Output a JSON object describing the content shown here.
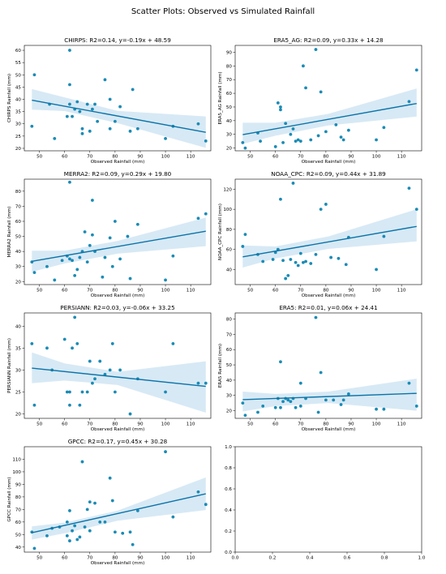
{
  "figure": {
    "title": "Scatter Plots: Observed vs Simulated Rainfall"
  },
  "colors": {
    "point": "#1a8bb5",
    "line": "#0b74a8",
    "band": "#a6cfe8",
    "axis": "#000000"
  },
  "chart_data": [
    {
      "type": "scatter",
      "title": "CHIRPS: R2=0.14, y=-0.19x + 48.59",
      "xlabel": "Observed Rainfall (mm)",
      "ylabel": "CHIRPS Rainfall (mm)",
      "xlim": [
        44,
        118
      ],
      "ylim": [
        19,
        62
      ],
      "xticks": [
        50,
        60,
        70,
        80,
        90,
        100,
        110
      ],
      "yticks": [
        20,
        25,
        30,
        35,
        40,
        45,
        50,
        55,
        60
      ],
      "regression": {
        "slope": -0.19,
        "intercept": 48.59
      },
      "band": {
        "x": [
          47,
          60,
          81,
          116
        ],
        "lower": [
          35.8,
          35.2,
          30.3,
          20.2
        ],
        "upper": [
          44.2,
          40.8,
          35.3,
          33.0
        ]
      },
      "points": [
        [
          47,
          29
        ],
        [
          48,
          50
        ],
        [
          54,
          38
        ],
        [
          56,
          24
        ],
        [
          61,
          33
        ],
        [
          62,
          60
        ],
        [
          62,
          46
        ],
        [
          62,
          38
        ],
        [
          63,
          33
        ],
        [
          64,
          36
        ],
        [
          65,
          39
        ],
        [
          66,
          35
        ],
        [
          67,
          26
        ],
        [
          67,
          28
        ],
        [
          69,
          38
        ],
        [
          70,
          27
        ],
        [
          71,
          36
        ],
        [
          72,
          38
        ],
        [
          73,
          31
        ],
        [
          76,
          48
        ],
        [
          78,
          40
        ],
        [
          78,
          28
        ],
        [
          80,
          31
        ],
        [
          82,
          37
        ],
        [
          86,
          27
        ],
        [
          87,
          44
        ],
        [
          89,
          28
        ],
        [
          100,
          24
        ],
        [
          103,
          29
        ],
        [
          113,
          30
        ],
        [
          116,
          23
        ]
      ]
    },
    {
      "type": "scatter",
      "title": "ERA5_AG: R2=0.09, y=0.33x + 14.28",
      "xlabel": "Observed Rainfall (mm)",
      "ylabel": "ERA5_AG Rainfall (mm)",
      "xlim": [
        44,
        118
      ],
      "ylim": [
        18,
        95
      ],
      "xticks": [
        50,
        60,
        70,
        80,
        90,
        100,
        110
      ],
      "yticks": [
        20,
        30,
        40,
        50,
        60,
        70,
        80,
        90
      ],
      "regression": {
        "slope": 0.33,
        "intercept": 14.28
      },
      "band": {
        "x": [
          47,
          60,
          81,
          116
        ],
        "lower": [
          23.0,
          29.0,
          36.5,
          43.0
        ],
        "upper": [
          38.5,
          38.5,
          45.0,
          63.5
        ]
      },
      "points": [
        [
          47,
          24
        ],
        [
          48,
          20
        ],
        [
          53,
          31
        ],
        [
          54,
          25
        ],
        [
          60,
          21
        ],
        [
          61,
          53
        ],
        [
          62,
          50
        ],
        [
          62,
          48
        ],
        [
          63,
          24
        ],
        [
          64,
          38
        ],
        [
          66,
          30
        ],
        [
          67,
          34
        ],
        [
          68,
          25
        ],
        [
          69,
          26
        ],
        [
          70,
          25
        ],
        [
          71,
          80
        ],
        [
          72,
          64
        ],
        [
          74,
          26
        ],
        [
          76,
          92
        ],
        [
          77,
          29
        ],
        [
          78,
          61
        ],
        [
          80,
          32
        ],
        [
          84,
          37
        ],
        [
          86,
          28
        ],
        [
          87,
          26
        ],
        [
          89,
          33
        ],
        [
          100,
          26
        ],
        [
          103,
          35
        ],
        [
          113,
          54
        ],
        [
          116,
          77
        ]
      ]
    },
    {
      "type": "scatter",
      "title": "MERRA2: R2=0.09, y=0.29x + 19.80",
      "xlabel": "Observed Rainfall (mm)",
      "ylabel": "MERRA2 Rainfall (mm)",
      "xlim": [
        44,
        118
      ],
      "ylim": [
        18,
        88
      ],
      "xticks": [
        50,
        60,
        70,
        80,
        90,
        100,
        110
      ],
      "yticks": [
        20,
        30,
        40,
        50,
        60,
        70,
        80
      ],
      "regression": {
        "slope": 0.29,
        "intercept": 19.8
      },
      "band": {
        "x": [
          47,
          60,
          81,
          116
        ],
        "lower": [
          26.5,
          32.0,
          38.5,
          43.5
        ],
        "upper": [
          40.5,
          40.5,
          47.0,
          62.5
        ]
      },
      "points": [
        [
          47,
          33
        ],
        [
          48,
          26
        ],
        [
          53,
          30
        ],
        [
          56,
          21
        ],
        [
          59,
          34
        ],
        [
          61,
          37
        ],
        [
          62,
          86
        ],
        [
          62,
          35
        ],
        [
          63,
          34
        ],
        [
          64,
          24
        ],
        [
          65,
          28
        ],
        [
          66,
          36
        ],
        [
          67,
          40
        ],
        [
          68,
          53
        ],
        [
          69,
          33
        ],
        [
          70,
          44
        ],
        [
          71,
          74
        ],
        [
          71,
          51
        ],
        [
          72,
          40
        ],
        [
          75,
          23
        ],
        [
          76,
          36
        ],
        [
          78,
          49
        ],
        [
          79,
          30
        ],
        [
          80,
          60
        ],
        [
          82,
          35
        ],
        [
          85,
          50
        ],
        [
          86,
          22
        ],
        [
          89,
          58
        ],
        [
          100,
          21
        ],
        [
          103,
          37
        ],
        [
          113,
          62
        ],
        [
          116,
          65
        ]
      ]
    },
    {
      "type": "scatter",
      "title": "NOAA_CPC: R2=0.09, y=0.44x + 31.89",
      "xlabel": "Observed Rainfall (mm)",
      "ylabel": "NOAA_CPC Rainfall (mm)",
      "xlim": [
        44,
        118
      ],
      "ylim": [
        25,
        130
      ],
      "xticks": [
        50,
        60,
        70,
        80,
        90,
        100,
        110
      ],
      "yticks": [
        40,
        60,
        80,
        100,
        120
      ],
      "regression": {
        "slope": 0.44,
        "intercept": 31.89
      },
      "band": {
        "x": [
          47,
          60,
          81,
          116
        ],
        "lower": [
          42.0,
          51.0,
          60.5,
          68.0
        ],
        "upper": [
          64.0,
          63.0,
          73.0,
          100.0
        ]
      },
      "points": [
        [
          47,
          63
        ],
        [
          48,
          75
        ],
        [
          53,
          55
        ],
        [
          55,
          48
        ],
        [
          59,
          50
        ],
        [
          60,
          57
        ],
        [
          61,
          60
        ],
        [
          62,
          110
        ],
        [
          63,
          49
        ],
        [
          64,
          31
        ],
        [
          65,
          34
        ],
        [
          66,
          50
        ],
        [
          67,
          126
        ],
        [
          68,
          47
        ],
        [
          69,
          44
        ],
        [
          70,
          56
        ],
        [
          71,
          47
        ],
        [
          72,
          48
        ],
        [
          74,
          46
        ],
        [
          76,
          55
        ],
        [
          78,
          100
        ],
        [
          80,
          105
        ],
        [
          82,
          52
        ],
        [
          85,
          51
        ],
        [
          88,
          45
        ],
        [
          89,
          72
        ],
        [
          100,
          40
        ],
        [
          103,
          73
        ],
        [
          113,
          121
        ],
        [
          116,
          100
        ]
      ]
    },
    {
      "type": "scatter",
      "title": "PERSIANN: R2=0.03, y=-0.06x + 33.25",
      "xlabel": "Observed Rainfall (mm)",
      "ylabel": "PERSIANN Rainfall (mm)",
      "xlim": [
        44,
        118
      ],
      "ylim": [
        19,
        43
      ],
      "xticks": [
        50,
        60,
        70,
        80,
        90,
        100,
        110
      ],
      "yticks": [
        20,
        25,
        30,
        35,
        40
      ],
      "regression": {
        "slope": -0.06,
        "intercept": 33.25
      },
      "band": {
        "x": [
          47,
          60,
          81,
          116
        ],
        "lower": [
          27.0,
          27.6,
          26.6,
          20.3
        ],
        "upper": [
          34.0,
          31.5,
          29.6,
          32.0
        ]
      },
      "points": [
        [
          47,
          36
        ],
        [
          48,
          22
        ],
        [
          53,
          35
        ],
        [
          55,
          30
        ],
        [
          60,
          37
        ],
        [
          61,
          25
        ],
        [
          62,
          22
        ],
        [
          62,
          25
        ],
        [
          63,
          35
        ],
        [
          64,
          42
        ],
        [
          65,
          36
        ],
        [
          66,
          22
        ],
        [
          67,
          25
        ],
        [
          69,
          25
        ],
        [
          70,
          32
        ],
        [
          71,
          27
        ],
        [
          72,
          28
        ],
        [
          74,
          32
        ],
        [
          76,
          29
        ],
        [
          78,
          30
        ],
        [
          79,
          36
        ],
        [
          80,
          25
        ],
        [
          82,
          30
        ],
        [
          86,
          20
        ],
        [
          89,
          28
        ],
        [
          100,
          25
        ],
        [
          103,
          36
        ],
        [
          113,
          27
        ],
        [
          116,
          27
        ]
      ]
    },
    {
      "type": "scatter",
      "title": "ERA5: R2=0.01, y=0.06x + 24.41",
      "xlabel": "Observed Rainfall (mm)",
      "ylabel": "ERA5 Rainfall (mm)",
      "xlim": [
        44,
        118
      ],
      "ylim": [
        15,
        84
      ],
      "xticks": [
        50,
        60,
        70,
        80,
        90,
        100,
        110
      ],
      "yticks": [
        20,
        30,
        40,
        50,
        60,
        70,
        80
      ],
      "regression": {
        "slope": 0.06,
        "intercept": 24.41
      },
      "band": {
        "x": [
          47,
          60,
          81,
          116
        ],
        "lower": [
          19.5,
          23.0,
          25.0,
          20.0
        ],
        "upper": [
          32.5,
          31.0,
          32.5,
          41.0
        ]
      },
      "points": [
        [
          47,
          25
        ],
        [
          48,
          17
        ],
        [
          53,
          19
        ],
        [
          55,
          23
        ],
        [
          60,
          22
        ],
        [
          61,
          28
        ],
        [
          62,
          52
        ],
        [
          62,
          22
        ],
        [
          63,
          26
        ],
        [
          64,
          28
        ],
        [
          65,
          27
        ],
        [
          66,
          26
        ],
        [
          67,
          28
        ],
        [
          68,
          22
        ],
        [
          70,
          38
        ],
        [
          70,
          23
        ],
        [
          72,
          28
        ],
        [
          76,
          81
        ],
        [
          77,
          19
        ],
        [
          78,
          45
        ],
        [
          80,
          27
        ],
        [
          83,
          27
        ],
        [
          86,
          24
        ],
        [
          87,
          27
        ],
        [
          89,
          31
        ],
        [
          100,
          21
        ],
        [
          103,
          21
        ],
        [
          113,
          38
        ],
        [
          116,
          23
        ]
      ]
    },
    {
      "type": "scatter",
      "title": "GPCC: R2=0.17, y=0.45x + 30.28",
      "xlabel": "Observed Rainfall (mm)",
      "ylabel": "GPCC Rainfall (mm)",
      "xlim": [
        44,
        118
      ],
      "ylim": [
        36,
        120
      ],
      "xticks": [
        50,
        60,
        70,
        80,
        90,
        100,
        110
      ],
      "yticks": [
        40,
        50,
        60,
        70,
        80,
        90,
        100,
        110
      ],
      "regression": {
        "slope": 0.45,
        "intercept": 30.28
      },
      "band": {
        "x": [
          47,
          60,
          81,
          116
        ],
        "lower": [
          46.0,
          51.0,
          61.0,
          69.5
        ],
        "upper": [
          56.5,
          59.5,
          69.0,
          95.5
        ]
      },
      "points": [
        [
          47,
          52
        ],
        [
          48,
          39
        ],
        [
          53,
          49
        ],
        [
          55,
          55
        ],
        [
          58,
          56
        ],
        [
          61,
          49
        ],
        [
          61,
          60
        ],
        [
          62,
          45
        ],
        [
          62,
          69
        ],
        [
          63,
          53
        ],
        [
          64,
          57
        ],
        [
          65,
          46
        ],
        [
          66,
          48
        ],
        [
          67,
          108
        ],
        [
          68,
          56
        ],
        [
          69,
          70
        ],
        [
          70,
          53
        ],
        [
          70,
          76
        ],
        [
          72,
          75
        ],
        [
          74,
          60
        ],
        [
          76,
          60
        ],
        [
          78,
          95
        ],
        [
          79,
          77
        ],
        [
          80,
          52
        ],
        [
          83,
          51
        ],
        [
          86,
          52
        ],
        [
          87,
          42
        ],
        [
          89,
          69
        ],
        [
          100,
          116
        ],
        [
          103,
          64
        ],
        [
          113,
          84
        ],
        [
          116,
          74
        ]
      ]
    },
    {
      "type": "scatter",
      "title": "",
      "xlabel": "",
      "ylabel": "",
      "xlim": [
        0,
        1
      ],
      "ylim": [
        0,
        1
      ],
      "xticks": [
        0.0,
        0.2,
        0.4,
        0.6,
        0.8,
        1.0
      ],
      "yticks": [
        0.0,
        0.2,
        0.4,
        0.6,
        0.8,
        1.0
      ],
      "points": []
    }
  ]
}
